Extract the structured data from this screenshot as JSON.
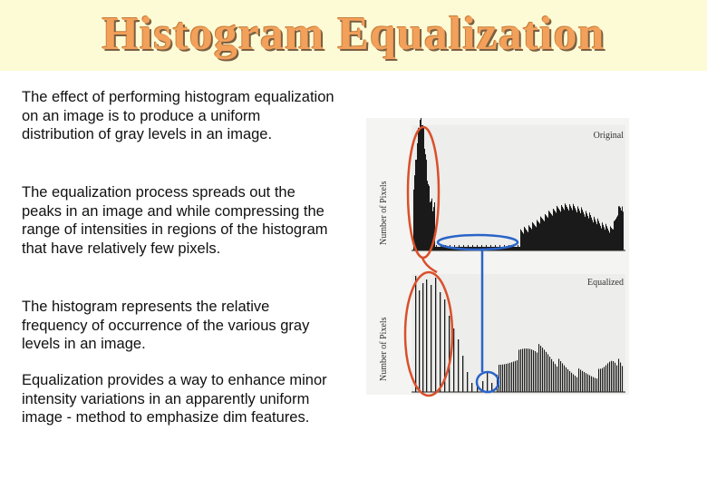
{
  "slide": {
    "title": "Histogram Equalization",
    "paragraphs": [
      "The effect of performing histogram equalization on an image is to produce a uniform distribution of gray levels in an image.",
      "The equalization process spreads out the peaks in an image and while compressing the range of intensities in regions of the histogram that have relatively few pixels.",
      "The histogram represents the relative frequency of occurrence of the various gray levels in an image.",
      "Equalization provides a way to enhance minor intensity variations in an apparently uniform image - method to emphasize dim features."
    ]
  },
  "figure": {
    "top_panel": {
      "label": "Original",
      "ylabel": "Number of Pixels"
    },
    "bottom_panel": {
      "label": "Equalized",
      "ylabel": "Number of Pixels"
    },
    "annotation_colors": {
      "red": "#d9502b",
      "blue": "#2a64c8"
    }
  }
}
